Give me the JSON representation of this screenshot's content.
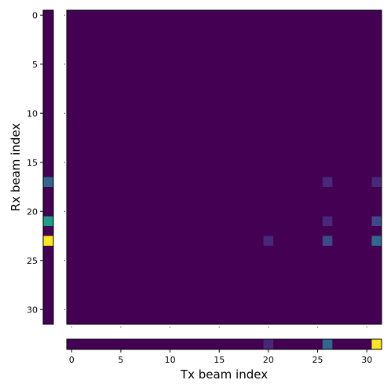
{
  "chart_data": {
    "type": "heatmap",
    "title": "",
    "xlabel": "Tx beam index",
    "ylabel": "Rx beam index",
    "n_tx": 32,
    "n_rx": 32,
    "xticks": [
      0,
      5,
      10,
      15,
      20,
      25,
      30
    ],
    "yticks": [
      0,
      5,
      10,
      15,
      20,
      25,
      30
    ],
    "colormap": "viridis",
    "vmin": 0,
    "vmax": 1,
    "background_value": 0,
    "grid": false,
    "main_cells": [
      {
        "tx": 20,
        "rx": 17,
        "value": 0.04
      },
      {
        "tx": 26,
        "rx": 17,
        "value": 0.07
      },
      {
        "tx": 31,
        "rx": 17,
        "value": 0.12
      },
      {
        "tx": 20,
        "rx": 21,
        "value": 0.05
      },
      {
        "tx": 26,
        "rx": 21,
        "value": 0.1
      },
      {
        "tx": 31,
        "rx": 21,
        "value": 0.2
      },
      {
        "tx": 20,
        "rx": 23,
        "value": 0.06
      },
      {
        "tx": 26,
        "rx": 23,
        "value": 0.18
      },
      {
        "tx": 31,
        "rx": 23,
        "value": 0.32
      }
    ],
    "rx_marginal": [
      {
        "rx": 17,
        "value": 0.28
      },
      {
        "rx": 21,
        "value": 0.52
      },
      {
        "rx": 23,
        "value": 0.97
      }
    ],
    "tx_marginal": [
      {
        "tx": 20,
        "value": 0.1
      },
      {
        "tx": 26,
        "value": 0.3
      },
      {
        "tx": 31,
        "value": 0.97
      }
    ]
  },
  "colors": {
    "viridis": [
      "#440154",
      "#482878",
      "#3e4989",
      "#31688e",
      "#26828e",
      "#1f9e89",
      "#35b779",
      "#6ece58",
      "#b5de2b",
      "#fde725"
    ]
  }
}
